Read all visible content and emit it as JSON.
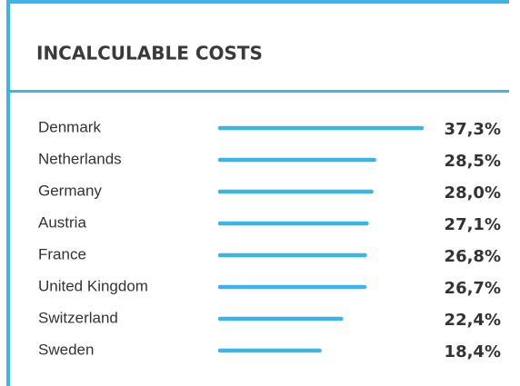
{
  "chart_data": {
    "type": "bar",
    "title": "INCALCULABLE COSTS",
    "categories": [
      "Denmark",
      "Netherlands",
      "Germany",
      "Austria",
      "France",
      "United Kingdom",
      "Switzerland",
      "Sweden"
    ],
    "values": [
      37.3,
      28.5,
      28.0,
      27.1,
      26.8,
      26.7,
      22.4,
      18.4
    ],
    "value_labels": [
      "37,3%",
      "28,5%",
      "28,0%",
      "27,1%",
      "26,8%",
      "26,7%",
      "22,4%",
      "18,4%"
    ],
    "color": "#3bb5e8"
  }
}
